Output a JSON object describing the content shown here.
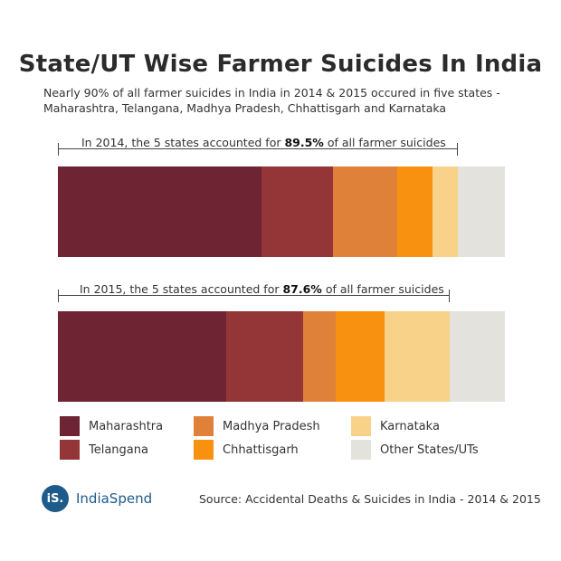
{
  "chart_data": {
    "type": "bar",
    "title": "State/UT Wise Farmer Suicides In India",
    "subtitle_lines": [
      "Nearly 90% of all farmer suicides in India in 2014 & 2015 occured in five states -",
      "Maharashtra, Telangana, Madhya Pradesh, Chhattisgarh and Karnataka"
    ],
    "categories": [
      "Maharashtra",
      "Telangana",
      "Madhya Pradesh",
      "Chhattisgarh",
      "Karnataka",
      "Other States/UTs"
    ],
    "colors": [
      "#6e2433",
      "#943537",
      "#e0813a",
      "#f7910f",
      "#f8d288",
      "#e3e2dc"
    ],
    "series": [
      {
        "name": "2014",
        "values": [
          45.5,
          16.1,
          14.4,
          7.9,
          5.6,
          10.5
        ],
        "annotation_prefix": "In 2014, the 5 states accounted for ",
        "annotation_value": "89.5%",
        "annotation_suffix": " of all farmer suicides",
        "annotation_span": 89.5
      },
      {
        "name": "2015",
        "values": [
          37.6,
          17.3,
          7.2,
          10.9,
          14.6,
          12.4
        ],
        "annotation_prefix": "In 2015, the 5 states accounted for ",
        "annotation_value": "87.6%",
        "annotation_suffix": " of all farmer suicides",
        "annotation_span": 87.6
      }
    ],
    "xlim": [
      0,
      100
    ],
    "stacked": true,
    "legend_position": "bottom"
  },
  "footer": {
    "logo_mark": "iS.",
    "logo_name": "IndiaSpend",
    "source": "Source: Accidental Deaths & Suicides in India - 2014 & 2015"
  }
}
